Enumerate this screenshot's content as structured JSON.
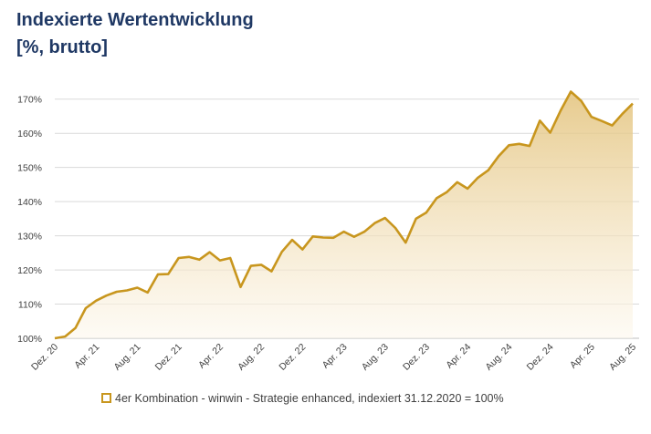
{
  "chart_data": {
    "type": "area",
    "title": "Indexierte Wertentwicklung",
    "subtitle": "[%, brutto]",
    "categories": [
      "Dez. 20",
      null,
      null,
      null,
      "Apr. 21",
      null,
      null,
      null,
      "Aug. 21",
      null,
      null,
      null,
      "Dez. 21",
      null,
      null,
      null,
      "Apr. 22",
      null,
      null,
      null,
      "Aug. 22",
      null,
      null,
      null,
      "Dez. 22",
      null,
      null,
      null,
      "Apr. 23",
      null,
      null,
      null,
      "Aug. 23",
      null,
      null,
      null,
      "Dez. 23",
      null,
      null,
      null,
      "Apr. 24",
      null,
      null,
      null,
      "Aug. 24",
      null,
      null,
      null,
      "Dez. 24",
      null,
      null,
      null,
      "Apr. 25",
      null,
      null,
      null,
      "Aug. 25"
    ],
    "series": [
      {
        "name": "4er Kombination - winwin - Strategie enhanced, indexiert 31.12.2020 = 100%",
        "color": "#c8961e",
        "values": [
          100,
          100.5,
          103,
          108.8,
          111,
          112.5,
          113.6,
          114,
          114.8,
          113.4,
          118.7,
          118.8,
          123.5,
          123.8,
          123,
          125.2,
          122.8,
          123.5,
          115,
          121.2,
          121.5,
          119.6,
          125.3,
          128.8,
          126,
          129.8,
          129.5,
          129.4,
          131.2,
          129.7,
          131.2,
          133.7,
          135.2,
          132.3,
          128,
          135,
          136.8,
          141,
          142.8,
          145.7,
          143.8,
          147,
          149.2,
          153.3,
          156.5,
          156.9,
          156.3,
          163.7,
          160.2,
          166.6,
          172.2,
          169.5,
          164.8,
          163.6,
          162.3,
          165.7,
          168.7
        ]
      }
    ],
    "ylim": [
      100,
      175
    ],
    "yticks": [
      {
        "value": 100,
        "label": "100%"
      },
      {
        "value": 110,
        "label": "110%"
      },
      {
        "value": 120,
        "label": "120%"
      },
      {
        "value": 130,
        "label": "130%"
      },
      {
        "value": 140,
        "label": "140%"
      },
      {
        "value": 150,
        "label": "150%"
      },
      {
        "value": 160,
        "label": "160%"
      },
      {
        "value": 170,
        "label": "170%"
      }
    ],
    "grid": true
  }
}
